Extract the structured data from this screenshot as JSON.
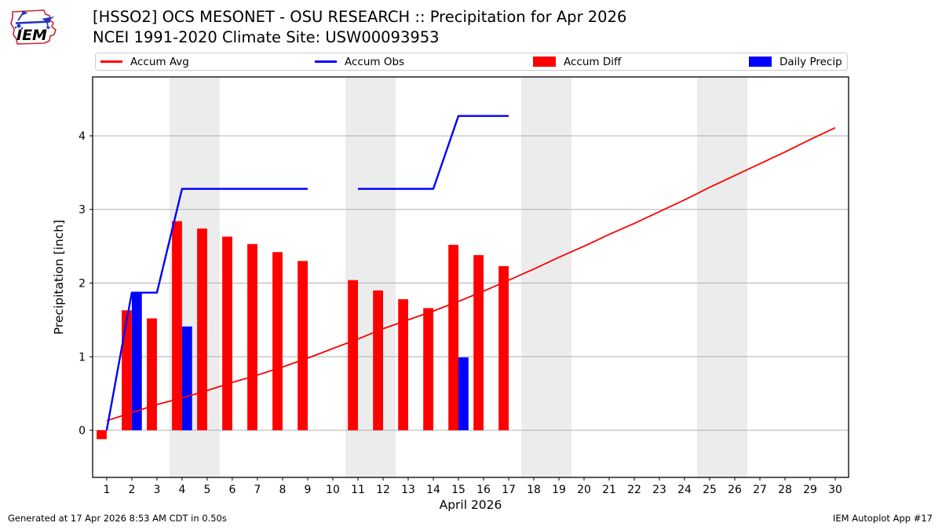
{
  "header": {
    "title_line1": "[HSSO2] OCS MESONET - OSU RESEARCH :: Precipitation for Apr 2026",
    "title_line2": "NCEI 1991-2020 Climate Site: USW00093953",
    "logo_text": "IEM"
  },
  "legend": {
    "items": [
      {
        "label": "Accum Avg",
        "type": "line",
        "color": "#ff0000"
      },
      {
        "label": "Accum Obs",
        "type": "line",
        "color": "#0000ff"
      },
      {
        "label": "Accum Diff",
        "type": "patch",
        "color": "#ff0000"
      },
      {
        "label": "Daily Precip",
        "type": "patch",
        "color": "#0000ff"
      }
    ]
  },
  "footer": {
    "generated": "Generated at 17 Apr 2026 8:53 AM CDT in 0.50s",
    "app": "IEM Autoplot App #17"
  },
  "chart_data": {
    "type": "bar",
    "title": "[HSSO2] OCS MESONET - OSU RESEARCH :: Precipitation for Apr 2026",
    "subtitle": "NCEI 1991-2020 Climate Site: USW00093953",
    "xlabel": "April 2026",
    "ylabel": "Precipitation [inch]",
    "xlim": [
      0.44,
      30.53
    ],
    "ylim": [
      -0.64,
      4.8
    ],
    "yticks": [
      0,
      1,
      2,
      3,
      4
    ],
    "x_days": [
      1,
      2,
      3,
      4,
      5,
      6,
      7,
      8,
      9,
      10,
      11,
      12,
      13,
      14,
      15,
      16,
      17,
      18,
      19,
      20,
      21,
      22,
      23,
      24,
      25,
      26,
      27,
      28,
      29,
      30
    ],
    "grid_color": "#b0b0b0",
    "band_color": "#ececec",
    "weekend_bands": [
      [
        3.5,
        5.5
      ],
      [
        10.5,
        12.5
      ],
      [
        17.5,
        19.5
      ],
      [
        24.5,
        26.5
      ]
    ],
    "legend_position": "top, expanded row of 4",
    "series": [
      {
        "name": "Accum Avg",
        "kind": "line",
        "color": "#ff0000",
        "width": 1.8,
        "values": [
          0.13,
          0.24,
          0.35,
          0.44,
          0.54,
          0.65,
          0.75,
          0.86,
          0.98,
          1.11,
          1.24,
          1.38,
          1.5,
          1.62,
          1.75,
          1.89,
          2.04,
          2.19,
          2.35,
          2.5,
          2.66,
          2.81,
          2.97,
          3.13,
          3.3,
          3.46,
          3.62,
          3.78,
          3.95,
          4.11
        ]
      },
      {
        "name": "Accum Obs",
        "kind": "line",
        "color": "#0000ff",
        "width": 2.4,
        "values": [
          0.0,
          1.87,
          1.87,
          3.28,
          3.28,
          3.28,
          3.28,
          3.28,
          3.28,
          null,
          3.28,
          3.28,
          3.28,
          3.28,
          4.27,
          4.27,
          4.27,
          null,
          null,
          null,
          null,
          null,
          null,
          null,
          null,
          null,
          null,
          null,
          null,
          null
        ]
      },
      {
        "name": "Accum Diff",
        "kind": "bar",
        "color": "#ff0000",
        "offset": [
          -0.4,
          0
        ],
        "values": [
          -0.12,
          1.63,
          1.52,
          2.84,
          2.74,
          2.63,
          2.53,
          2.42,
          2.3,
          null,
          2.04,
          1.9,
          1.78,
          1.66,
          2.52,
          2.38,
          2.23,
          null,
          null,
          null,
          null,
          null,
          null,
          null,
          null,
          null,
          null,
          null,
          null,
          null
        ]
      },
      {
        "name": "Daily Precip",
        "kind": "bar",
        "color": "#0000ff",
        "offset": [
          0,
          0.4
        ],
        "values": [
          null,
          1.87,
          null,
          1.41,
          null,
          null,
          null,
          null,
          null,
          null,
          null,
          null,
          null,
          null,
          0.99,
          null,
          null,
          null,
          null,
          null,
          null,
          null,
          null,
          null,
          null,
          null,
          null,
          null,
          null,
          null
        ]
      }
    ]
  }
}
